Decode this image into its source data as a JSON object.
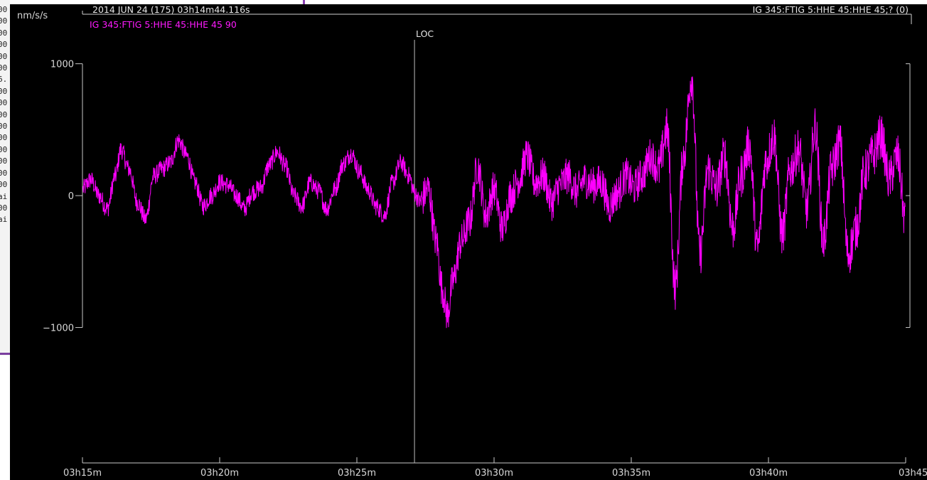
{
  "background_lines": [
    "00",
    "00",
    "00",
    "00",
    "00",
    "00",
    "6.",
    "00",
    "00",
    "00",
    "00",
    "00",
    "00",
    "00",
    "00",
    "00",
    "ai",
    "00",
    "ai"
  ],
  "plot": {
    "unit": "nm/s/s",
    "start_time": "2014 JUN 24 (175)  03h14m44.116s",
    "station_header": "IG 345:FTIG 5:HHE 45:HHE 45;? (0)",
    "trace_label": "IG 345:FTIG 5:HHE 45:HHE 45 90",
    "marker_label": "LOC",
    "colors": {
      "background": "#000000",
      "trace": "#ff00ff",
      "axis": "#c8c8c8"
    }
  },
  "chart_data": {
    "type": "line",
    "ylim": [
      -2000,
      1300
    ],
    "yticks": [
      1000,
      0,
      -1000
    ],
    "ytick_labels": [
      "1000",
      "0",
      "−1000"
    ],
    "xlim_minutes": [
      15,
      45
    ],
    "xticks_minutes": [
      15,
      20,
      25,
      30,
      35,
      40,
      45
    ],
    "xtick_labels": [
      "03h15m",
      "03h20m",
      "03h25m",
      "03h30m",
      "03h35m",
      "03h40m",
      "03h45"
    ],
    "marker_minute": 27.1,
    "series": [
      {
        "name": "IG 345:FTIG 5:HHE 45:HHE 45 90",
        "x_minutes": [
          15.0,
          15.3,
          15.6,
          15.9,
          16.2,
          16.4,
          16.7,
          17.0,
          17.3,
          17.6,
          17.9,
          18.2,
          18.5,
          18.8,
          19.1,
          19.4,
          19.7,
          20.0,
          20.3,
          20.6,
          20.9,
          21.2,
          21.5,
          21.8,
          22.1,
          22.4,
          22.7,
          23.0,
          23.3,
          23.6,
          23.9,
          24.2,
          24.5,
          24.8,
          25.1,
          25.4,
          25.7,
          26.0,
          26.3,
          26.6,
          26.9,
          27.1,
          27.3,
          27.6,
          27.9,
          28.1,
          28.3,
          28.5,
          28.8,
          29.1,
          29.4,
          29.7,
          30.0,
          30.3,
          30.6,
          30.9,
          31.2,
          31.5,
          31.8,
          32.1,
          32.4,
          32.7,
          33.0,
          33.3,
          33.6,
          33.9,
          34.2,
          34.5,
          34.8,
          35.1,
          35.4,
          35.7,
          36.0,
          36.3,
          36.6,
          36.9,
          37.2,
          37.5,
          37.8,
          38.1,
          38.4,
          38.7,
          39.0,
          39.3,
          39.6,
          39.9,
          40.2,
          40.5,
          40.8,
          41.1,
          41.4,
          41.7,
          42.0,
          42.3,
          42.6,
          42.9,
          43.2,
          43.5,
          43.8,
          44.1,
          44.4,
          44.7,
          45.0
        ],
        "y": [
          50,
          120,
          0,
          -100,
          150,
          350,
          200,
          -50,
          -180,
          150,
          200,
          250,
          420,
          300,
          100,
          -80,
          0,
          100,
          80,
          0,
          -100,
          30,
          60,
          230,
          330,
          220,
          0,
          -80,
          100,
          40,
          -100,
          50,
          240,
          320,
          180,
          50,
          -80,
          -150,
          100,
          250,
          150,
          20,
          -50,
          50,
          -350,
          -700,
          -900,
          -650,
          -350,
          -200,
          220,
          -150,
          50,
          -250,
          0,
          120,
          300,
          100,
          150,
          -50,
          80,
          150,
          30,
          120,
          80,
          100,
          -80,
          20,
          150,
          60,
          150,
          300,
          200,
          500,
          -700,
          300,
          900,
          -450,
          200,
          50,
          300,
          -250,
          150,
          380,
          -400,
          250,
          450,
          -300,
          200,
          350,
          -100,
          520,
          -350,
          200,
          400,
          -450,
          -250,
          180,
          300,
          450,
          120,
          300,
          -200
        ]
      }
    ]
  }
}
